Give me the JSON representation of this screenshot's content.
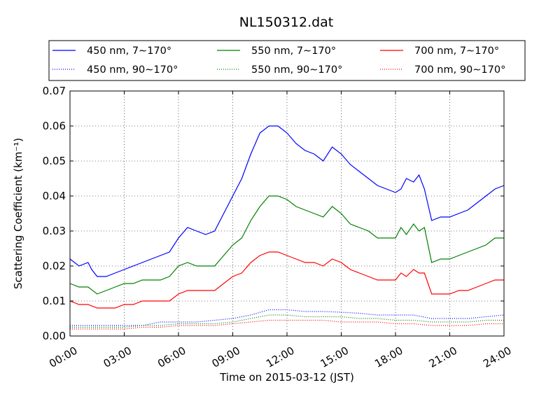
{
  "chart_data": {
    "type": "line",
    "title": "NL150312.dat",
    "xlabel": "Time on 2015-03-12 (JST)",
    "ylabel": "Scattering Coefficient (km⁻¹)",
    "x_ticks": [
      "00:00",
      "03:00",
      "06:00",
      "09:00",
      "12:00",
      "15:00",
      "18:00",
      "21:00",
      "24:00"
    ],
    "y_ticks": [
      "0.00",
      "0.01",
      "0.02",
      "0.03",
      "0.04",
      "0.05",
      "0.06",
      "0.07"
    ],
    "xlim": [
      "00:00",
      "24:00"
    ],
    "ylim": [
      0,
      0.07
    ],
    "grid": true,
    "legend_position": "top",
    "series": [
      {
        "name": "450 nm, 7∼170°",
        "color": "#0000ff",
        "style": "solid",
        "x": [
          0,
          0.5,
          1,
          1.2,
          1.5,
          2,
          2.5,
          3,
          3.5,
          4,
          4.5,
          5,
          5.5,
          6,
          6.5,
          7,
          7.5,
          8,
          8.5,
          9,
          9.5,
          10,
          10.5,
          11,
          11.5,
          12,
          12.5,
          13,
          13.5,
          14,
          14.5,
          15,
          15.5,
          16,
          16.5,
          17,
          17.5,
          18,
          18.3,
          18.6,
          19,
          19.3,
          19.6,
          20,
          20.5,
          21,
          21.5,
          22,
          22.5,
          23,
          23.5,
          24
        ],
        "y": [
          0.022,
          0.02,
          0.021,
          0.019,
          0.017,
          0.017,
          0.018,
          0.019,
          0.02,
          0.021,
          0.022,
          0.023,
          0.024,
          0.028,
          0.031,
          0.03,
          0.029,
          0.03,
          0.035,
          0.04,
          0.045,
          0.052,
          0.058,
          0.06,
          0.06,
          0.058,
          0.055,
          0.053,
          0.052,
          0.05,
          0.054,
          0.052,
          0.049,
          0.047,
          0.045,
          0.043,
          0.042,
          0.041,
          0.042,
          0.045,
          0.044,
          0.046,
          0.042,
          0.033,
          0.034,
          0.034,
          0.035,
          0.036,
          0.038,
          0.04,
          0.042,
          0.043
        ]
      },
      {
        "name": "550 nm, 7∼170°",
        "color": "#008000",
        "style": "solid",
        "x": [
          0,
          0.5,
          1,
          1.5,
          2,
          2.5,
          3,
          3.5,
          4,
          4.5,
          5,
          5.5,
          6,
          6.5,
          7,
          7.5,
          8,
          8.5,
          9,
          9.5,
          10,
          10.5,
          11,
          11.5,
          12,
          12.5,
          13,
          13.5,
          14,
          14.5,
          15,
          15.5,
          16,
          16.5,
          17,
          17.5,
          18,
          18.3,
          18.6,
          19,
          19.3,
          19.6,
          20,
          20.5,
          21,
          21.5,
          22,
          22.5,
          23,
          23.5,
          24
        ],
        "y": [
          0.015,
          0.014,
          0.014,
          0.012,
          0.013,
          0.014,
          0.015,
          0.015,
          0.016,
          0.016,
          0.016,
          0.017,
          0.02,
          0.021,
          0.02,
          0.02,
          0.02,
          0.023,
          0.026,
          0.028,
          0.033,
          0.037,
          0.04,
          0.04,
          0.039,
          0.037,
          0.036,
          0.035,
          0.034,
          0.037,
          0.035,
          0.032,
          0.031,
          0.03,
          0.028,
          0.028,
          0.028,
          0.031,
          0.029,
          0.032,
          0.03,
          0.031,
          0.021,
          0.022,
          0.022,
          0.023,
          0.024,
          0.025,
          0.026,
          0.028,
          0.028
        ]
      },
      {
        "name": "700 nm, 7∼170°",
        "color": "#ff0000",
        "style": "solid",
        "x": [
          0,
          0.5,
          1,
          1.5,
          2,
          2.5,
          3,
          3.5,
          4,
          4.5,
          5,
          5.5,
          6,
          6.5,
          7,
          7.5,
          8,
          8.5,
          9,
          9.5,
          10,
          10.5,
          11,
          11.5,
          12,
          12.5,
          13,
          13.5,
          14,
          14.5,
          15,
          15.5,
          16,
          16.5,
          17,
          17.5,
          18,
          18.3,
          18.6,
          19,
          19.3,
          19.6,
          20,
          20.5,
          21,
          21.5,
          22,
          22.5,
          23,
          23.5,
          24
        ],
        "y": [
          0.01,
          0.009,
          0.009,
          0.008,
          0.008,
          0.008,
          0.009,
          0.009,
          0.01,
          0.01,
          0.01,
          0.01,
          0.012,
          0.013,
          0.013,
          0.013,
          0.013,
          0.015,
          0.017,
          0.018,
          0.021,
          0.023,
          0.024,
          0.024,
          0.023,
          0.022,
          0.021,
          0.021,
          0.02,
          0.022,
          0.021,
          0.019,
          0.018,
          0.017,
          0.016,
          0.016,
          0.016,
          0.018,
          0.017,
          0.019,
          0.018,
          0.018,
          0.012,
          0.012,
          0.012,
          0.013,
          0.013,
          0.014,
          0.015,
          0.016,
          0.016
        ]
      },
      {
        "name": "450 nm, 90∼170°",
        "color": "#0000ff",
        "style": "dotted",
        "x": [
          0,
          1,
          2,
          3,
          4,
          5,
          6,
          7,
          8,
          9,
          10,
          11,
          12,
          13,
          14,
          15,
          16,
          17,
          18,
          19,
          20,
          21,
          22,
          23,
          24
        ],
        "y": [
          0.003,
          0.003,
          0.003,
          0.003,
          0.003,
          0.004,
          0.004,
          0.004,
          0.0045,
          0.005,
          0.006,
          0.0075,
          0.0075,
          0.007,
          0.007,
          0.0068,
          0.0065,
          0.006,
          0.006,
          0.006,
          0.005,
          0.005,
          0.005,
          0.0055,
          0.006
        ]
      },
      {
        "name": "550 nm, 90∼170°",
        "color": "#008000",
        "style": "dotted",
        "x": [
          0,
          1,
          2,
          3,
          4,
          5,
          6,
          7,
          8,
          9,
          10,
          11,
          12,
          13,
          14,
          15,
          16,
          17,
          18,
          19,
          20,
          21,
          22,
          23,
          24
        ],
        "y": [
          0.0025,
          0.0025,
          0.0025,
          0.0025,
          0.003,
          0.003,
          0.0035,
          0.0035,
          0.0035,
          0.004,
          0.005,
          0.006,
          0.006,
          0.0055,
          0.0055,
          0.0055,
          0.005,
          0.005,
          0.0045,
          0.0045,
          0.004,
          0.004,
          0.004,
          0.0045,
          0.0045
        ]
      },
      {
        "name": "700 nm, 90∼170°",
        "color": "#ff0000",
        "style": "dotted",
        "x": [
          0,
          1,
          2,
          3,
          4,
          5,
          6,
          7,
          8,
          9,
          10,
          11,
          12,
          13,
          14,
          15,
          16,
          17,
          18,
          19,
          20,
          21,
          22,
          23,
          24
        ],
        "y": [
          0.002,
          0.002,
          0.002,
          0.002,
          0.0025,
          0.0025,
          0.003,
          0.003,
          0.003,
          0.0035,
          0.004,
          0.0045,
          0.0045,
          0.0045,
          0.0045,
          0.004,
          0.004,
          0.004,
          0.0035,
          0.0035,
          0.003,
          0.003,
          0.003,
          0.0035,
          0.0035
        ]
      }
    ]
  }
}
